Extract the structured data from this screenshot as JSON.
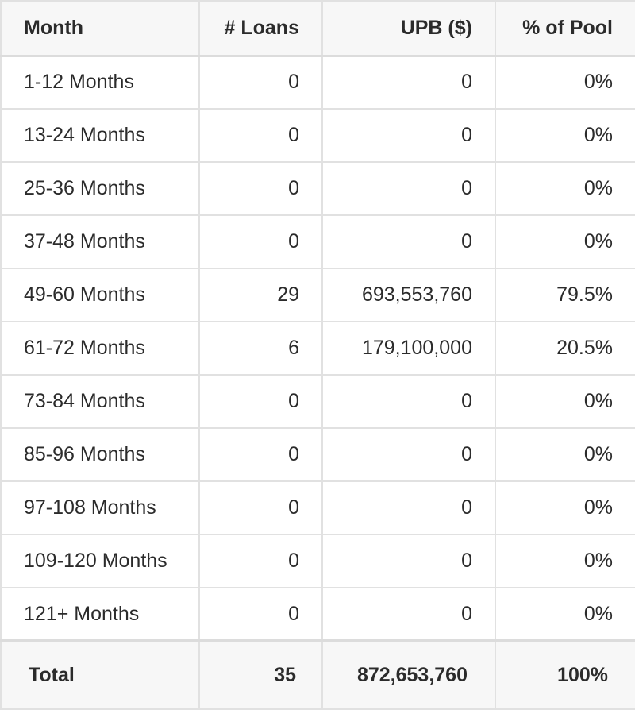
{
  "table": {
    "headers": {
      "month": "Month",
      "loans": "# Loans",
      "upb": "UPB ($)",
      "pct": "% of Pool"
    },
    "rows": [
      {
        "month": "1-12 Months",
        "loans": "0",
        "upb": "0",
        "pct": "0%"
      },
      {
        "month": "13-24 Months",
        "loans": "0",
        "upb": "0",
        "pct": "0%"
      },
      {
        "month": "25-36 Months",
        "loans": "0",
        "upb": "0",
        "pct": "0%"
      },
      {
        "month": "37-48 Months",
        "loans": "0",
        "upb": "0",
        "pct": "0%"
      },
      {
        "month": "49-60 Months",
        "loans": "29",
        "upb": "693,553,760",
        "pct": "79.5%"
      },
      {
        "month": "61-72 Months",
        "loans": "6",
        "upb": "179,100,000",
        "pct": "20.5%"
      },
      {
        "month": "73-84 Months",
        "loans": "0",
        "upb": "0",
        "pct": "0%"
      },
      {
        "month": "85-96 Months",
        "loans": "0",
        "upb": "0",
        "pct": "0%"
      },
      {
        "month": "97-108 Months",
        "loans": "0",
        "upb": "0",
        "pct": "0%"
      },
      {
        "month": "109-120 Months",
        "loans": "0",
        "upb": "0",
        "pct": "0%"
      },
      {
        "month": "121+ Months",
        "loans": "0",
        "upb": "0",
        "pct": "0%"
      }
    ],
    "total": {
      "month": "Total",
      "loans": "35",
      "upb": "872,653,760",
      "pct": "100%"
    }
  }
}
